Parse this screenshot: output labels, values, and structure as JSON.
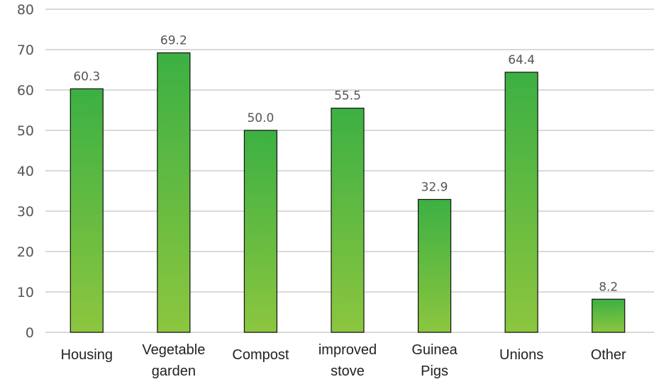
{
  "chart_data": {
    "type": "bar",
    "categories": [
      "Housing",
      "Vegetable garden",
      "Compost",
      "improved stove",
      "Guinea Pigs",
      "Unions",
      "Other"
    ],
    "category_lines": [
      [
        "Housing"
      ],
      [
        "Vegetable",
        "garden"
      ],
      [
        "Compost"
      ],
      [
        "improved",
        "stove"
      ],
      [
        "Guinea",
        "Pigs"
      ],
      [
        "Unions"
      ],
      [
        "Other"
      ]
    ],
    "values": [
      60.3,
      69.2,
      50.0,
      55.5,
      32.9,
      64.4,
      8.2
    ],
    "value_labels": [
      "60.3",
      "69.2",
      "50.0",
      "55.5",
      "32.9",
      "64.4",
      "8.2"
    ],
    "y_ticks": [
      "0",
      "10",
      "20",
      "30",
      "40",
      "50",
      "60",
      "70",
      "80"
    ],
    "ylim": [
      0,
      80
    ],
    "grid": true,
    "legend": "none",
    "title": "",
    "xlabel": "",
    "ylabel": "",
    "colors": {
      "bar_top": "#3cb043",
      "bar_bottom": "#8cc63f",
      "grid": "#d9d9d9",
      "bar_border": "#111111"
    }
  }
}
